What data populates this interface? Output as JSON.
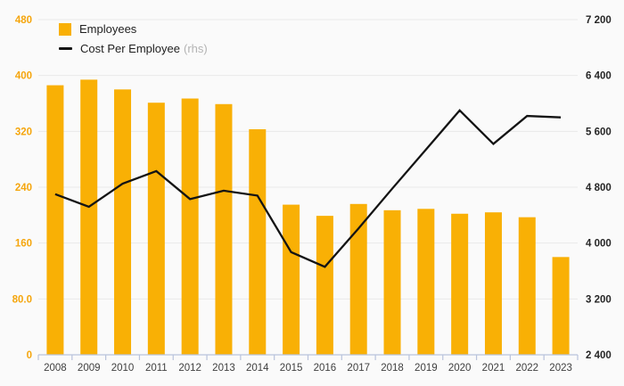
{
  "legend": {
    "items": [
      {
        "label": "Employees",
        "suffix": ""
      },
      {
        "label": "Cost Per Employee",
        "suffix": "(rhs)"
      }
    ]
  },
  "chart_data": {
    "type": "bar+line combo",
    "title": "",
    "categories": [
      "2008",
      "2009",
      "2010",
      "2011",
      "2012",
      "2013",
      "2014",
      "2015",
      "2016",
      "2017",
      "2018",
      "2019",
      "2020",
      "2021",
      "2022",
      "2023"
    ],
    "series": [
      {
        "name": "Employees",
        "type": "bar",
        "axis": "left",
        "values": [
          386,
          394,
          380,
          361,
          367,
          359,
          323,
          215,
          199,
          216,
          207,
          209,
          202,
          204,
          197,
          140
        ]
      },
      {
        "name": "Cost Per Employee (rhs)",
        "type": "line",
        "axis": "right",
        "values": [
          4700,
          4520,
          4850,
          5030,
          4630,
          4750,
          4680,
          3870,
          3660,
          4210,
          4780,
          5340,
          5900,
          5420,
          5820,
          5800
        ]
      }
    ],
    "left_axis": {
      "min": 0,
      "max": 480,
      "tick_labels_top_to_bottom": [
        "480",
        "400",
        "320",
        "240",
        "160",
        "80.0",
        "0"
      ]
    },
    "right_axis": {
      "min": 2400,
      "max": 7200,
      "tick_labels_top_to_bottom": [
        "7 200",
        "6 400",
        "5 600",
        "4 800",
        "4 000",
        "3 200",
        "2 400"
      ]
    },
    "grid": true,
    "legend_position": "top-left"
  },
  "colors": {
    "bar": "#F9B005",
    "line": "#141414",
    "left_axis_text": "#F5A60E",
    "right_axis_text": "#262626",
    "x_axis_text": "#3f3f3f",
    "grid_line": "#e9e9e9",
    "axis_line": "#b9c3dc",
    "background": "#fafafa",
    "legend_suffix_text": "#b3b3b3"
  }
}
